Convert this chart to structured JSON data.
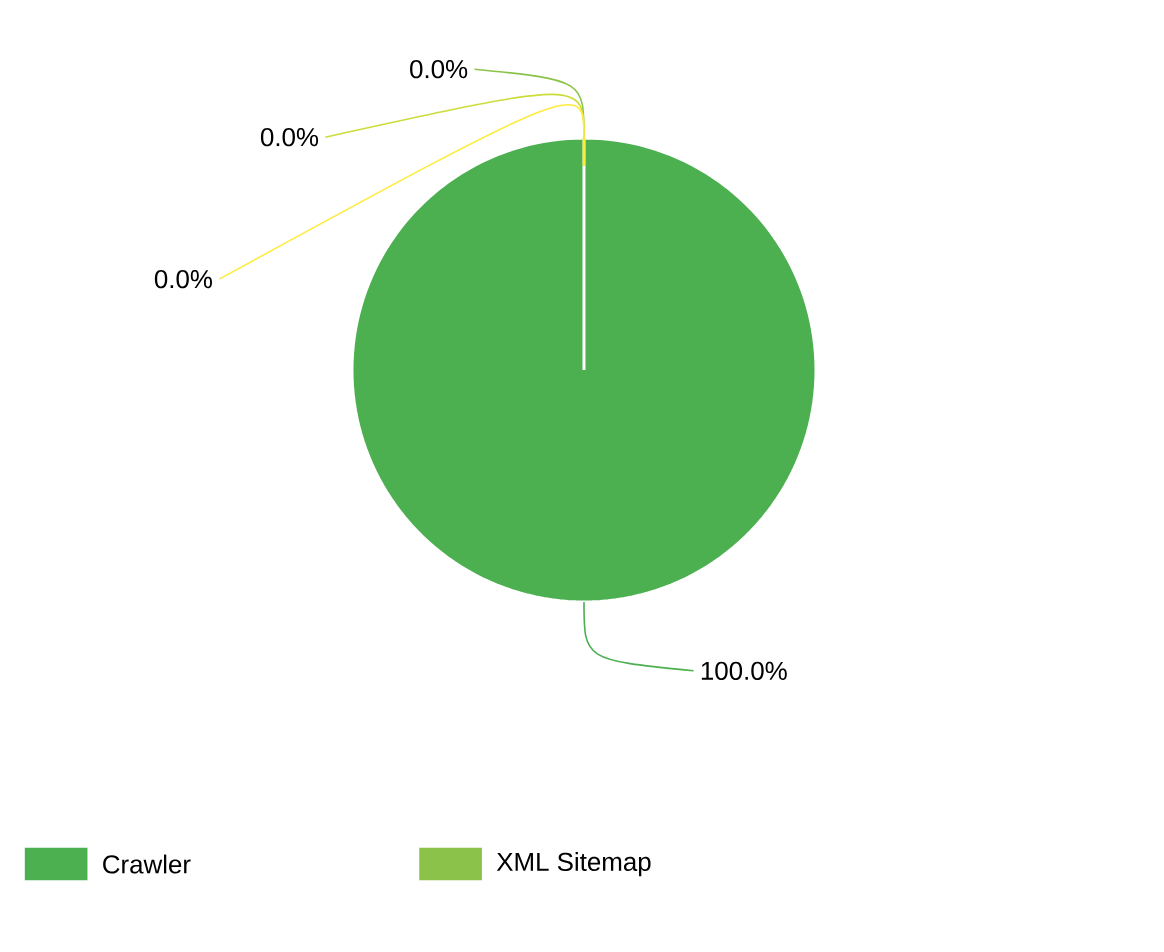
{
  "chart_data": {
    "type": "pie",
    "categories": [
      "Crawler",
      "XML Sitemap",
      null,
      null
    ],
    "values": [
      100,
      0,
      0,
      0
    ],
    "value_labels": [
      "100.0%",
      "0.0%",
      "0.0%",
      "0.0%"
    ],
    "colors": [
      "#4caf50",
      "#8bc34a",
      "#cddc39",
      "#ffeb3b"
    ],
    "legend": "bottom"
  }
}
